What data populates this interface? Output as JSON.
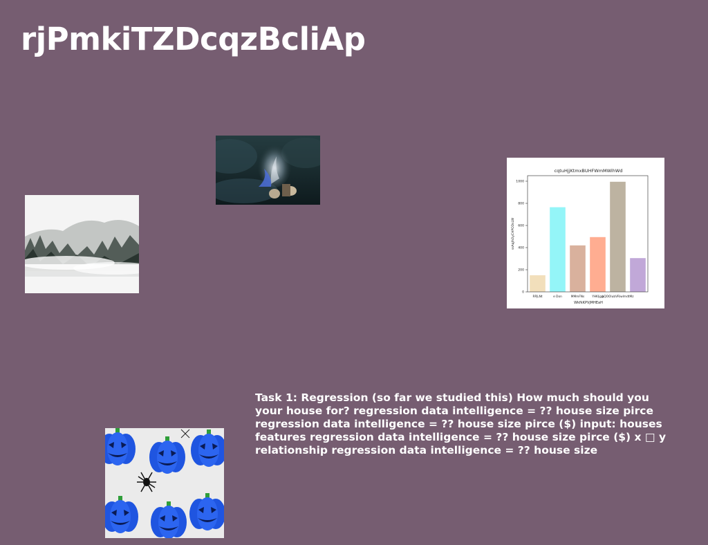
{
  "page": {
    "title": "rjPmkiTZDcqzBcliAp",
    "body_text": "Task 1: Regression (so far we studied this) How much should you your house for? regression data intelligence = ?? house size pirce regression data intelligence = ?? house size pirce ($) input: houses features regression data intelligence = ?? house size pirce ($) x □ y relationship regression data intelligence = ?? house size"
  },
  "images": {
    "fire": "campfire-photo",
    "fog": "foggy-forest-photo",
    "pumpkins": "blue-pumpkins-photo"
  },
  "chart_data": {
    "type": "bar",
    "title": "cqtuHjjKtmxBUHFWmMWihWd",
    "xlabel": "WkfkKPVjMHEaH",
    "ylabel": "ssAqJhOyCHPODsLW",
    "categories": [
      "RPjLNt",
      "e Don",
      "MMmFNs",
      "YHKIjgg",
      "bQOOlubVRiwlmdtMz",
      ""
    ],
    "values": [
      150,
      765,
      420,
      495,
      995,
      305
    ],
    "colors": [
      "#f2dfbb",
      "#94f5f8",
      "#d9b19d",
      "#ffad91",
      "#bdb3a1",
      "#c1a8d8"
    ],
    "ylim": [
      0,
      1050
    ],
    "yticks": [
      0,
      200,
      400,
      600,
      800,
      1000
    ]
  }
}
